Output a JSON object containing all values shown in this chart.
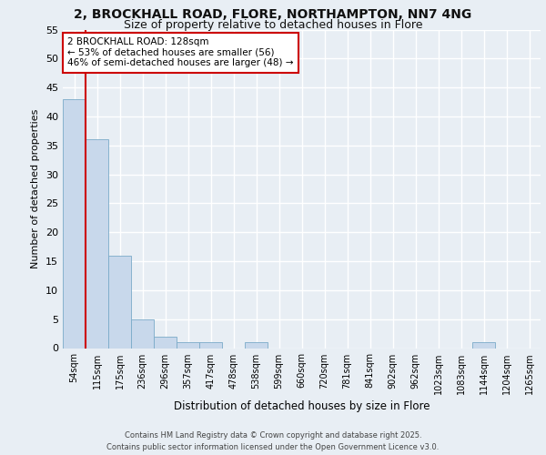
{
  "title_line1": "2, BROCKHALL ROAD, FLORE, NORTHAMPTON, NN7 4NG",
  "title_line2": "Size of property relative to detached houses in Flore",
  "bar_values": [
    43,
    36,
    16,
    5,
    2,
    1,
    1,
    0,
    1,
    0,
    0,
    0,
    0,
    0,
    0,
    0,
    0,
    0,
    1,
    0,
    0
  ],
  "x_labels": [
    "54sqm",
    "115sqm",
    "175sqm",
    "236sqm",
    "296sqm",
    "357sqm",
    "417sqm",
    "478sqm",
    "538sqm",
    "599sqm",
    "660sqm",
    "720sqm",
    "781sqm",
    "841sqm",
    "902sqm",
    "962sqm",
    "1023sqm",
    "1083sqm",
    "1144sqm",
    "1204sqm",
    "1265sqm"
  ],
  "bar_color": "#c8d8eb",
  "bar_edge_color": "#7aaac8",
  "ylabel": "Number of detached properties",
  "xlabel": "Distribution of detached houses by size in Flore",
  "ylim": [
    0,
    55
  ],
  "yticks": [
    0,
    5,
    10,
    15,
    20,
    25,
    30,
    35,
    40,
    45,
    50,
    55
  ],
  "red_line_x": 0.5,
  "red_line_color": "#cc0000",
  "annotation_text": "2 BROCKHALL ROAD: 128sqm\n← 53% of detached houses are smaller (56)\n46% of semi-detached houses are larger (48) →",
  "annotation_box_color": "#ffffff",
  "annotation_box_edge": "#cc0000",
  "footer_text": "Contains HM Land Registry data © Crown copyright and database right 2025.\nContains public sector information licensed under the Open Government Licence v3.0.",
  "background_color": "#e8eef4",
  "plot_background": "#e8eef4",
  "grid_color": "#ffffff",
  "title_fontsize": 10,
  "subtitle_fontsize": 9
}
